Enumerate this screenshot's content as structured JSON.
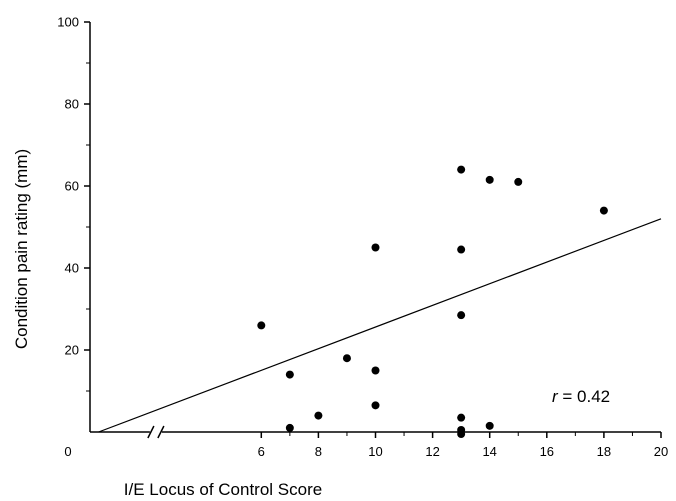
{
  "chart_data": {
    "type": "scatter",
    "xlabel": "I/E Locus of Control Score",
    "ylabel": "Condition pain rating (mm)",
    "xlim": [
      0,
      20
    ],
    "ylim": [
      0,
      100
    ],
    "x_ticks": [
      0,
      6,
      8,
      10,
      12,
      14,
      16,
      18,
      20
    ],
    "y_ticks": [
      20,
      40,
      60,
      80,
      100
    ],
    "x_axis_break_between": [
      0,
      6
    ],
    "grid": false,
    "points": [
      {
        "x": 6,
        "y": 26
      },
      {
        "x": 7,
        "y": 14
      },
      {
        "x": 7,
        "y": 1
      },
      {
        "x": 8,
        "y": 4
      },
      {
        "x": 9,
        "y": 18
      },
      {
        "x": 10,
        "y": 45
      },
      {
        "x": 10,
        "y": 15
      },
      {
        "x": 10,
        "y": 6.5
      },
      {
        "x": 13,
        "y": 64
      },
      {
        "x": 13,
        "y": 44.5
      },
      {
        "x": 13,
        "y": 28.5
      },
      {
        "x": 13,
        "y": 3.5
      },
      {
        "x": 13,
        "y": 0.5
      },
      {
        "x": 13,
        "y": -0.5
      },
      {
        "x": 14,
        "y": 61.5
      },
      {
        "x": 14,
        "y": 1.5
      },
      {
        "x": 15,
        "y": 61
      },
      {
        "x": 18,
        "y": 54
      }
    ],
    "regression_line": {
      "x": [
        0.3,
        20
      ],
      "y": [
        0,
        52
      ]
    },
    "annotation": {
      "prefix": "r",
      "text": " = 0.42"
    },
    "colors": {
      "points": "#000000",
      "line": "#000000",
      "axis": "#000000"
    }
  }
}
